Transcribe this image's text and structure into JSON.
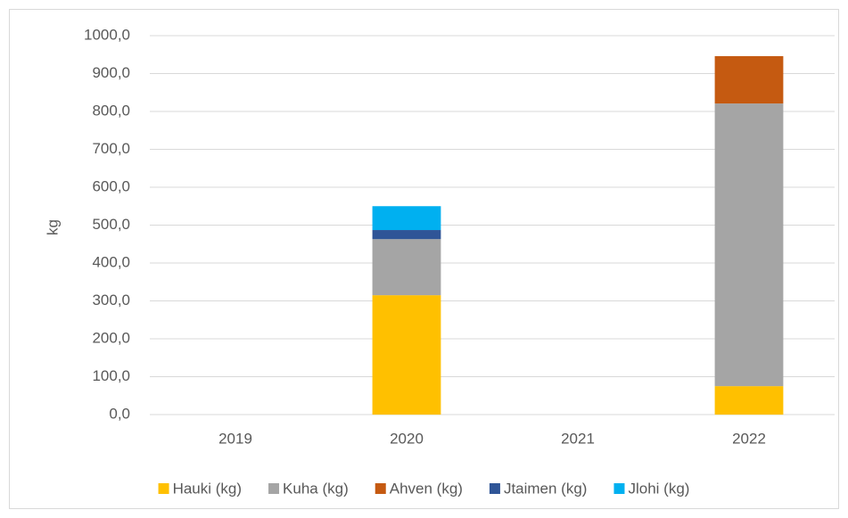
{
  "chart_data": {
    "type": "stacked_bar",
    "y_label": "kg",
    "categories": [
      "2019",
      "2020",
      "2021",
      "2022"
    ],
    "series": [
      {
        "name": "Hauki (kg)",
        "color": "#ffc000",
        "values": [
          0,
          315,
          0,
          75
        ]
      },
      {
        "name": "Kuha (kg)",
        "color": "#a5a5a5",
        "values": [
          0,
          148,
          0,
          746
        ]
      },
      {
        "name": "Ahven (kg)",
        "color": "#c55a11",
        "values": [
          0,
          0,
          0,
          125
        ]
      },
      {
        "name": "Jtaimen (kg)",
        "color": "#2f5597",
        "values": [
          0,
          24,
          0,
          0
        ]
      },
      {
        "name": "Jlohi (kg)",
        "color": "#00b0f0",
        "values": [
          0,
          63,
          0,
          0
        ]
      }
    ],
    "ylim": [
      0,
      1000
    ],
    "yticks": [
      {
        "value": 0,
        "label": "0,0"
      },
      {
        "value": 100,
        "label": "100,0"
      },
      {
        "value": 200,
        "label": "200,0"
      },
      {
        "value": 300,
        "label": "300,0"
      },
      {
        "value": 400,
        "label": "400,0"
      },
      {
        "value": 500,
        "label": "500,0"
      },
      {
        "value": 600,
        "label": "600,0"
      },
      {
        "value": 700,
        "label": "700,0"
      },
      {
        "value": 800,
        "label": "800,0"
      },
      {
        "value": 900,
        "label": "900,0"
      },
      {
        "value": 1000,
        "label": "1000,0"
      }
    ],
    "grid": true,
    "legend": "bottom"
  }
}
